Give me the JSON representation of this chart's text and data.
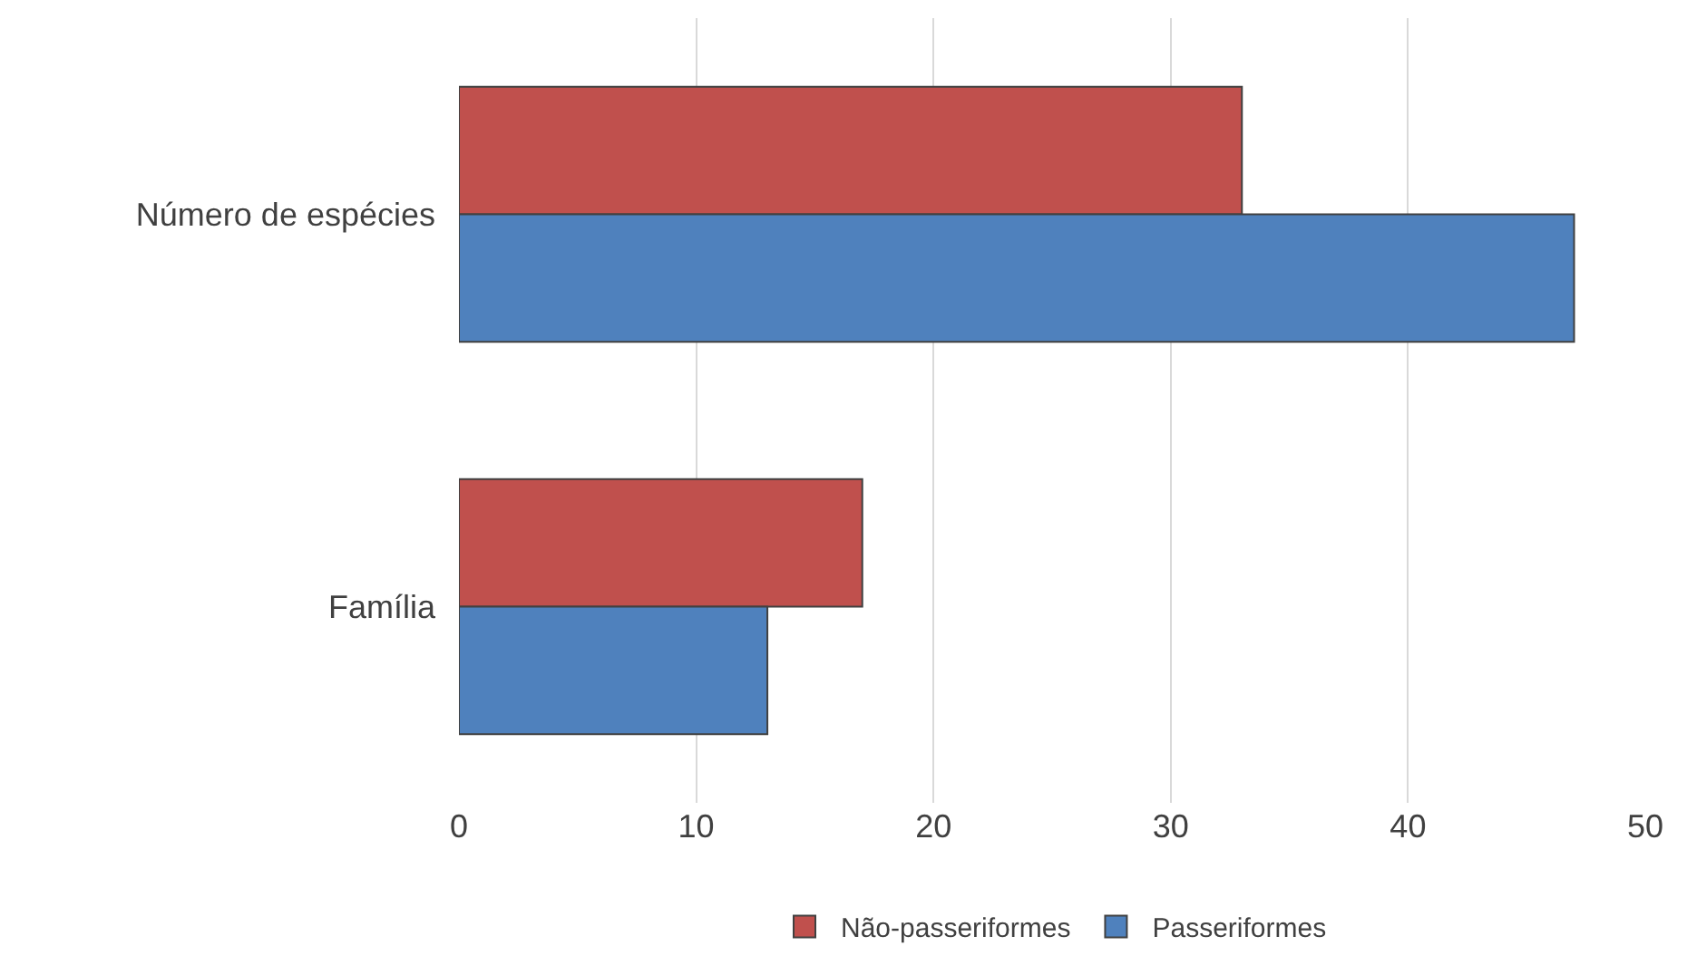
{
  "chart_data": {
    "type": "bar",
    "orientation": "horizontal",
    "categories": [
      "Número de espécies",
      "Família"
    ],
    "series": [
      {
        "name": "Não-passeriformes",
        "color": "#c0504d",
        "values": [
          33,
          17
        ]
      },
      {
        "name": "Passeriformes",
        "color": "#4f81bd",
        "values": [
          47,
          13
        ]
      }
    ],
    "xlim": [
      0,
      50
    ],
    "xticks": [
      0,
      10,
      20,
      30,
      40,
      50
    ],
    "grid": "x",
    "legend": "bottom"
  }
}
